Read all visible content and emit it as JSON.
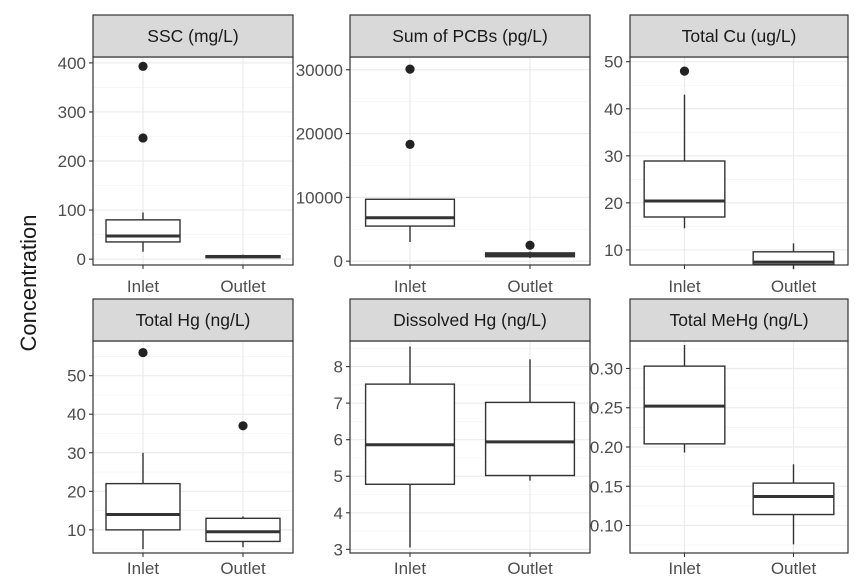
{
  "chart_data": {
    "type": "box",
    "ylabel": "Concentration",
    "categories": [
      "Inlet",
      "Outlet"
    ],
    "panels": [
      {
        "title": "SSC (mg/L)",
        "ylim": [
          -12,
          412
        ],
        "yticks": [
          0,
          100,
          200,
          300,
          400
        ],
        "boxes": [
          {
            "category": "Inlet",
            "min": 15,
            "q1": 35,
            "median": 47,
            "q3": 80,
            "max": 95,
            "outliers": [
              247,
              393
            ]
          },
          {
            "category": "Outlet",
            "min": 2,
            "q1": 3,
            "median": 5,
            "q3": 7,
            "max": 9,
            "outliers": []
          }
        ]
      },
      {
        "title": "Sum of PCBs (pg/L)",
        "ylim": [
          -600,
          32000
        ],
        "yticks": [
          0,
          10000,
          20000,
          30000
        ],
        "boxes": [
          {
            "category": "Inlet",
            "min": 3000,
            "q1": 5500,
            "median": 6800,
            "q3": 9700,
            "max": 9800,
            "outliers": [
              18300,
              30100
            ]
          },
          {
            "category": "Outlet",
            "min": 500,
            "q1": 700,
            "median": 1000,
            "q3": 1300,
            "max": 1500,
            "outliers": [
              2500
            ]
          }
        ]
      },
      {
        "title": "Total Cu (ug/L)",
        "ylim": [
          6.8,
          51
        ],
        "yticks": [
          10,
          20,
          30,
          40,
          50
        ],
        "boxes": [
          {
            "category": "Inlet",
            "min": 14.6,
            "q1": 17,
            "median": 20.4,
            "q3": 28.9,
            "max": 43,
            "outliers": [
              48
            ]
          },
          {
            "category": "Outlet",
            "min": 5.9,
            "q1": 6.9,
            "median": 7.4,
            "q3": 9.6,
            "max": 11.4,
            "outliers": []
          }
        ]
      },
      {
        "title": "Total Hg (ng/L)",
        "ylim": [
          4,
          59
        ],
        "yticks": [
          10,
          20,
          30,
          40,
          50
        ],
        "boxes": [
          {
            "category": "Inlet",
            "min": 5,
            "q1": 10,
            "median": 14,
            "q3": 22,
            "max": 30,
            "outliers": [
              56
            ]
          },
          {
            "category": "Outlet",
            "min": 5.5,
            "q1": 7,
            "median": 9.5,
            "q3": 13,
            "max": 13.5,
            "outliers": [
              37
            ]
          }
        ]
      },
      {
        "title": "Dissolved Hg (ng/L)",
        "ylim": [
          2.9,
          8.7
        ],
        "yticks": [
          3,
          4,
          5,
          6,
          7,
          8
        ],
        "boxes": [
          {
            "category": "Inlet",
            "min": 3.05,
            "q1": 4.78,
            "median": 5.86,
            "q3": 7.52,
            "max": 8.55,
            "outliers": []
          },
          {
            "category": "Outlet",
            "min": 4.88,
            "q1": 5.02,
            "median": 5.94,
            "q3": 7.02,
            "max": 8.2,
            "outliers": []
          }
        ]
      },
      {
        "title": "Total MeHg (ng/L)",
        "ylim": [
          0.065,
          0.335
        ],
        "yticks": [
          0.1,
          0.15,
          0.2,
          0.25,
          0.3
        ],
        "ytick_labels": [
          "0.10",
          "0.15",
          "0.20",
          "0.25",
          "0.30"
        ],
        "boxes": [
          {
            "category": "Inlet",
            "min": 0.193,
            "q1": 0.204,
            "median": 0.252,
            "q3": 0.303,
            "max": 0.33,
            "outliers": []
          },
          {
            "category": "Outlet",
            "min": 0.076,
            "q1": 0.114,
            "median": 0.137,
            "q3": 0.154,
            "max": 0.178,
            "outliers": []
          }
        ]
      }
    ],
    "grid": true,
    "facet_layout": "2 rows x 3 columns"
  }
}
